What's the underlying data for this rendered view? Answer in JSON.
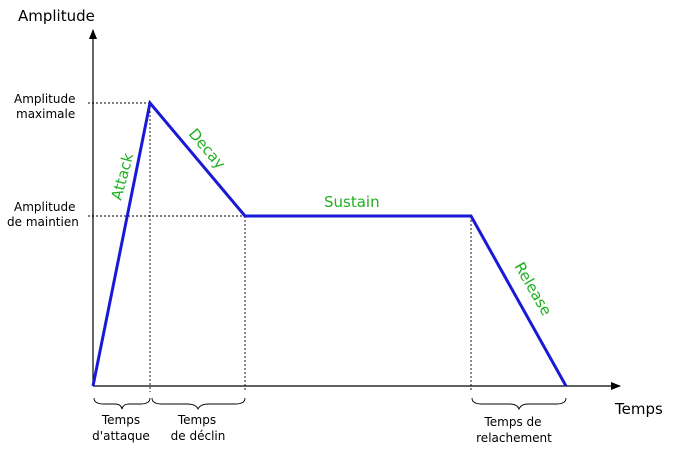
{
  "axes": {
    "y_label": "Amplitude",
    "x_label": "Temps"
  },
  "levels": {
    "max_line1": "Amplitude",
    "max_line2": "maximale",
    "sustain_line1": "Amplitude",
    "sustain_line2": "de maintien"
  },
  "phases": {
    "attack": "Attack",
    "decay": "Decay",
    "sustain": "Sustain",
    "release": "Release"
  },
  "durations": {
    "attack_line1": "Temps",
    "attack_line2": "d'attaque",
    "decay_line1": "Temps",
    "decay_line2": "de déclin",
    "release_line1": "Temps de",
    "release_line2": "relachement"
  },
  "colors": {
    "envelope": "#1a1ad6",
    "phase_labels": "#1fb01f"
  }
}
